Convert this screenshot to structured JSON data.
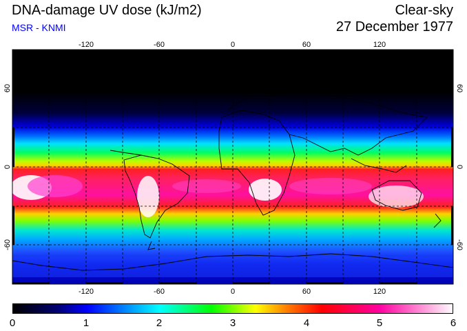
{
  "title": "DNA-damage UV dose (kJ/m2)",
  "source": "MSR - KNMI",
  "condition": "Clear-sky",
  "date": "27 December 1977",
  "map": {
    "lon_range": [
      -180,
      180
    ],
    "lat_range": [
      -90,
      90
    ],
    "lon_ticks": [
      "-120",
      "-60",
      "0",
      "60",
      "120"
    ],
    "lat_ticks": [
      "60",
      "0",
      "-60"
    ],
    "projection": "equirectangular",
    "grid": "dashed every 30 degrees"
  },
  "colorbar": {
    "min": 0,
    "max": 6,
    "labels": [
      "0",
      "1",
      "2",
      "3",
      "4",
      "5",
      "6"
    ],
    "colors": [
      "#000000",
      "#0000cc",
      "#0080ff",
      "#00ffff",
      "#00ff00",
      "#ffff00",
      "#ff8000",
      "#ff0000",
      "#ff00aa",
      "#ffffff"
    ]
  }
}
